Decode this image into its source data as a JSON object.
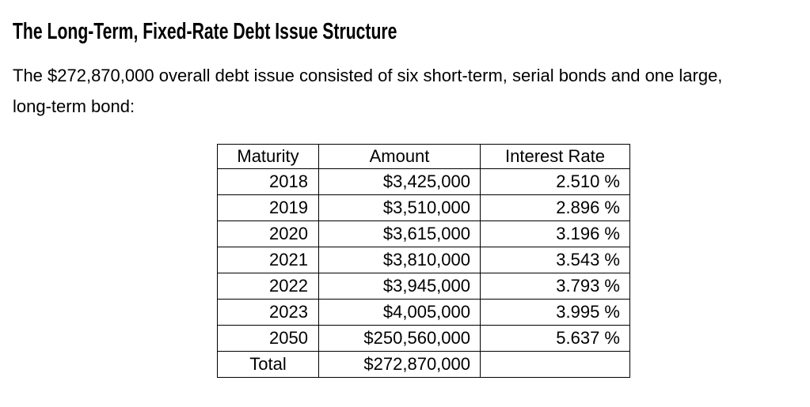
{
  "page": {
    "title": "The Long-Term, Fixed-Rate Debt Issue Structure",
    "intro_line1": "The $272,870,000 overall debt issue consisted of six short-term, serial bonds and one large,",
    "intro_line2": "long-term bond:"
  },
  "table": {
    "columns": [
      "Maturity",
      "Amount",
      "Interest Rate"
    ],
    "rows": [
      {
        "maturity": "2018",
        "amount": "$3,425,000",
        "rate": "2.510 %"
      },
      {
        "maturity": "2019",
        "amount": "$3,510,000",
        "rate": "2.896 %"
      },
      {
        "maturity": "2020",
        "amount": "$3,615,000",
        "rate": "3.196 %"
      },
      {
        "maturity": "2021",
        "amount": "$3,810,000",
        "rate": "3.543 %"
      },
      {
        "maturity": "2022",
        "amount": "$3,945,000",
        "rate": "3.793 %"
      },
      {
        "maturity": "2023",
        "amount": "$4,005,000",
        "rate": "3.995 %"
      },
      {
        "maturity": "2050",
        "amount": "$250,560,000",
        "rate": "5.637 %"
      },
      {
        "maturity": "Total",
        "amount": "$272,870,000",
        "rate": ""
      }
    ]
  }
}
